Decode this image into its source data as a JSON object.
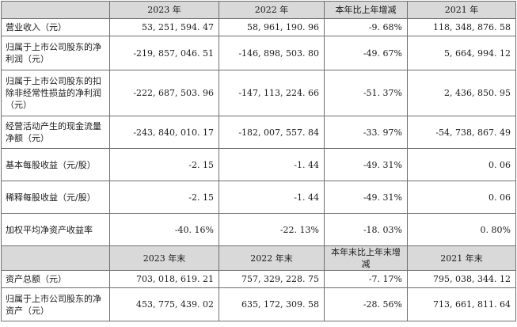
{
  "header1": [
    "",
    "2023 年",
    "2022 年",
    "本年比上年增减",
    "2021 年"
  ],
  "rows1": [
    {
      "label": "营业收入（元）",
      "values": [
        "53, 251, 594. 47",
        "58, 961, 190. 96",
        "-9. 68%",
        "118, 348, 876. 58"
      ]
    },
    {
      "label": "归属于上市公司股东的净利润（元）",
      "values": [
        "-219, 857, 046. 51",
        "-146, 898, 503. 80",
        "-49. 67%",
        "5, 664, 994. 12"
      ]
    },
    {
      "label": "归属于上市公司股东的扣除非经常性损益的净利润（元）",
      "values": [
        "-222, 687, 503. 96",
        "-147, 113, 224. 66",
        "-51. 37%",
        "2, 436, 850. 95"
      ]
    },
    {
      "label": "经营活动产生的现金流量净额（元）",
      "values": [
        "-243, 840, 010. 17",
        "-182, 007, 557. 84",
        "-33. 97%",
        "-54, 738, 867. 49"
      ]
    },
    {
      "label": "基本每股收益（元/股）",
      "values": [
        "-2. 15",
        "-1. 44",
        "-49. 31%",
        "0. 06"
      ]
    },
    {
      "label": "稀释每股收益（元/股）",
      "values": [
        "-2. 15",
        "-1. 44",
        "-49. 31%",
        "0. 06"
      ]
    },
    {
      "label": "加权平均净资产收益率",
      "values": [
        "-40. 16%",
        "-22. 13%",
        "-18. 03%",
        "0. 80%"
      ]
    }
  ],
  "header2": [
    "",
    "2023 年末",
    "2022 年末",
    "本年末比上年末增减",
    "2021 年末"
  ],
  "rows2": [
    {
      "label": "资产总额（元）",
      "values": [
        "703, 018, 619. 21",
        "757, 329, 228. 75",
        "-7. 17%",
        "795, 038, 344. 12"
      ]
    },
    {
      "label": "归属于上市公司股东的净资产（元）",
      "values": [
        "453, 775, 439. 02",
        "635, 172, 309. 58",
        "-28. 56%",
        "713, 661, 811. 64"
      ]
    }
  ]
}
